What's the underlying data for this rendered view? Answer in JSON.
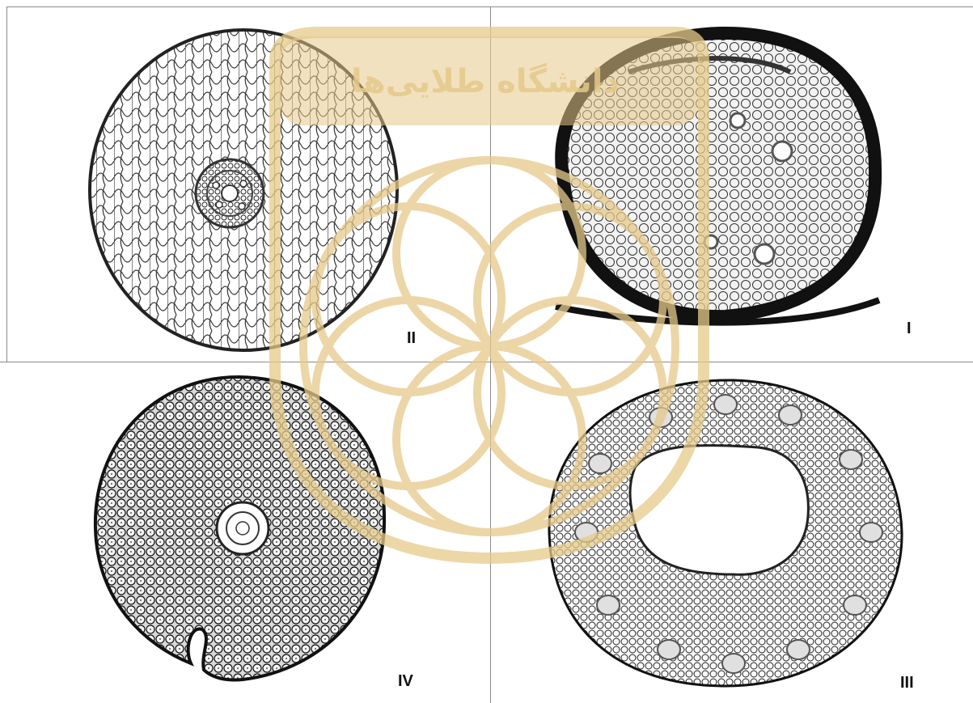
{
  "panels": [
    {
      "id": "II",
      "label": "II"
    },
    {
      "id": "I",
      "label": "I"
    },
    {
      "id": "IV",
      "label": "IV"
    },
    {
      "id": "III",
      "label": "III"
    }
  ],
  "watermark": {
    "text": "دانشگاه طلایی‌ها",
    "color": "#e6c98a"
  },
  "colors": {
    "ink": "#111111",
    "divider": "#8a8a8a"
  }
}
